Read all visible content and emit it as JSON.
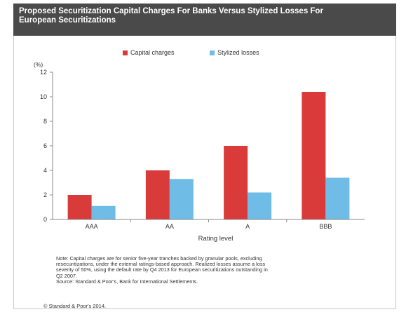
{
  "title_lines": [
    "Proposed  Securitization Capital Charges For Banks Versus  Stylized Losses  For",
    "European Securitizations"
  ],
  "colors": {
    "capital": "#d93a3a",
    "stylized": "#6fbde6",
    "title_bg": "#4a4a4a",
    "axis": "#888888"
  },
  "note_lines": [
    "Note: Capital charges are for senior five-year tranches backed by granular pools,  excluding",
    "resecuritizations, under the external ratings-based approach. Realized  losses assume a loss",
    "severity of 50%, using the default rate by Q4 2013 for European securitizations outstanding in",
    "Q2 2007.",
    "Source: Standard & Poor's, Bank for International Settlements."
  ],
  "copyright": "© Standard & Poor's 2014.",
  "chart_data": {
    "type": "bar",
    "categories": [
      "AAA",
      "AA",
      "A",
      "BBB"
    ],
    "series": [
      {
        "name": "Capital charges",
        "values": [
          2.0,
          4.0,
          6.0,
          10.4
        ]
      },
      {
        "name": "Stylized losses",
        "values": [
          1.1,
          3.3,
          2.2,
          3.4
        ]
      }
    ],
    "xlabel": "Rating level",
    "ylabel": "(%)",
    "ylim": [
      0,
      12
    ],
    "yticks": [
      0,
      2,
      4,
      6,
      8,
      10,
      12
    ],
    "legend_position": "top",
    "grid": false
  }
}
